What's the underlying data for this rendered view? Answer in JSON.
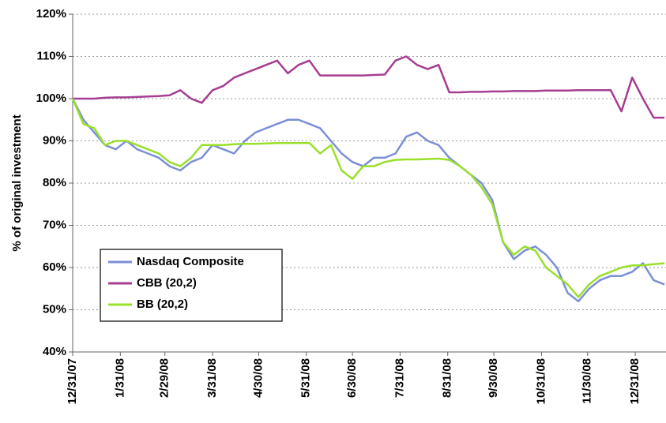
{
  "chart_data": {
    "type": "line",
    "y_label": "% of original investment",
    "x": [
      "12/31/07",
      "1/7/08",
      "1/14/08",
      "1/21/08",
      "1/28/08",
      "2/4/08",
      "2/11/08",
      "2/18/08",
      "2/25/08",
      "3/3/08",
      "3/10/08",
      "3/17/08",
      "3/24/08",
      "3/31/08",
      "4/7/08",
      "4/14/08",
      "4/21/08",
      "4/28/08",
      "5/5/08",
      "5/12/08",
      "5/19/08",
      "5/26/08",
      "6/2/08",
      "6/9/08",
      "6/16/08",
      "6/23/08",
      "6/30/08",
      "7/7/08",
      "7/14/08",
      "7/21/08",
      "7/28/08",
      "8/4/08",
      "8/11/08",
      "8/18/08",
      "8/25/08",
      "9/1/08",
      "9/8/08",
      "9/15/08",
      "9/22/08",
      "9/29/08",
      "10/6/08",
      "10/13/08",
      "10/20/08",
      "10/27/08",
      "11/3/08",
      "11/10/08",
      "11/17/08",
      "11/24/08",
      "12/1/08",
      "12/8/08",
      "12/15/08",
      "12/22/08",
      "12/29/08",
      "1/5/09",
      "1/12/09",
      "1/19/09"
    ],
    "series": [
      {
        "name": "Nasdaq Composite",
        "color": "#7b8fd6",
        "values": [
          100,
          95,
          92,
          89,
          88,
          90,
          88,
          87,
          86,
          84,
          83,
          85,
          86,
          89,
          88,
          87,
          90,
          92,
          93,
          94,
          95,
          95,
          94,
          93,
          90,
          87,
          85,
          84,
          86,
          86,
          87,
          91,
          92,
          90,
          89,
          86,
          84,
          82,
          80,
          76,
          66,
          62,
          64,
          65,
          63,
          60,
          54,
          52,
          55,
          57,
          58,
          58,
          59,
          61,
          57,
          56
        ]
      },
      {
        "name": "CBB (20,2)",
        "color": "#a63d92",
        "values": [
          100,
          100,
          100,
          100.2,
          100.3,
          100.3,
          100.4,
          100.5,
          100.6,
          100.8,
          102,
          100,
          99,
          102,
          103,
          105,
          106,
          107,
          108,
          109,
          106,
          108,
          109,
          105.5,
          105.5,
          105.5,
          105.5,
          105.5,
          105.6,
          105.7,
          109,
          110,
          108,
          107,
          108,
          101.5,
          101.5,
          101.6,
          101.6,
          101.7,
          101.7,
          101.8,
          101.8,
          101.8,
          101.9,
          101.9,
          101.9,
          102,
          102,
          102,
          102,
          97,
          105,
          100,
          95.5,
          95.5
        ]
      },
      {
        "name": "BB (20,2)",
        "color": "#99e02a",
        "values": [
          100,
          94,
          93,
          89,
          90,
          90,
          89,
          88,
          87,
          85,
          84,
          86,
          89,
          89,
          89,
          89.2,
          89.3,
          89.3,
          89.4,
          89.5,
          89.5,
          89.5,
          89.5,
          87,
          89,
          83,
          81,
          84,
          84,
          85,
          85.5,
          85.6,
          85.6,
          85.7,
          85.8,
          85.5,
          84,
          82,
          79,
          75,
          66,
          63,
          65,
          64,
          60,
          58,
          56,
          53,
          56,
          58,
          59,
          60,
          60.5,
          60.5,
          60.8,
          61
        ]
      }
    ],
    "xlim": [
      "12/31/07",
      "1/20/09"
    ],
    "xticks": [
      "12/31/07",
      "1/31/08",
      "2/29/08",
      "3/31/08",
      "4/30/08",
      "5/31/08",
      "6/30/08",
      "7/31/08",
      "8/31/08",
      "9/30/08",
      "10/31/08",
      "11/30/08",
      "12/31/08"
    ],
    "ylim": [
      40,
      120
    ],
    "yticks": [
      {
        "value": 40,
        "label": "40%"
      },
      {
        "value": 50,
        "label": "50%"
      },
      {
        "value": 60,
        "label": "60%"
      },
      {
        "value": 70,
        "label": "70%"
      },
      {
        "value": 80,
        "label": "80%"
      },
      {
        "value": 90,
        "label": "90%"
      },
      {
        "value": 100,
        "label": "100%"
      },
      {
        "value": 110,
        "label": "110%"
      },
      {
        "value": 120,
        "label": "120%"
      }
    ],
    "grid": true,
    "legend": "lower-left"
  }
}
